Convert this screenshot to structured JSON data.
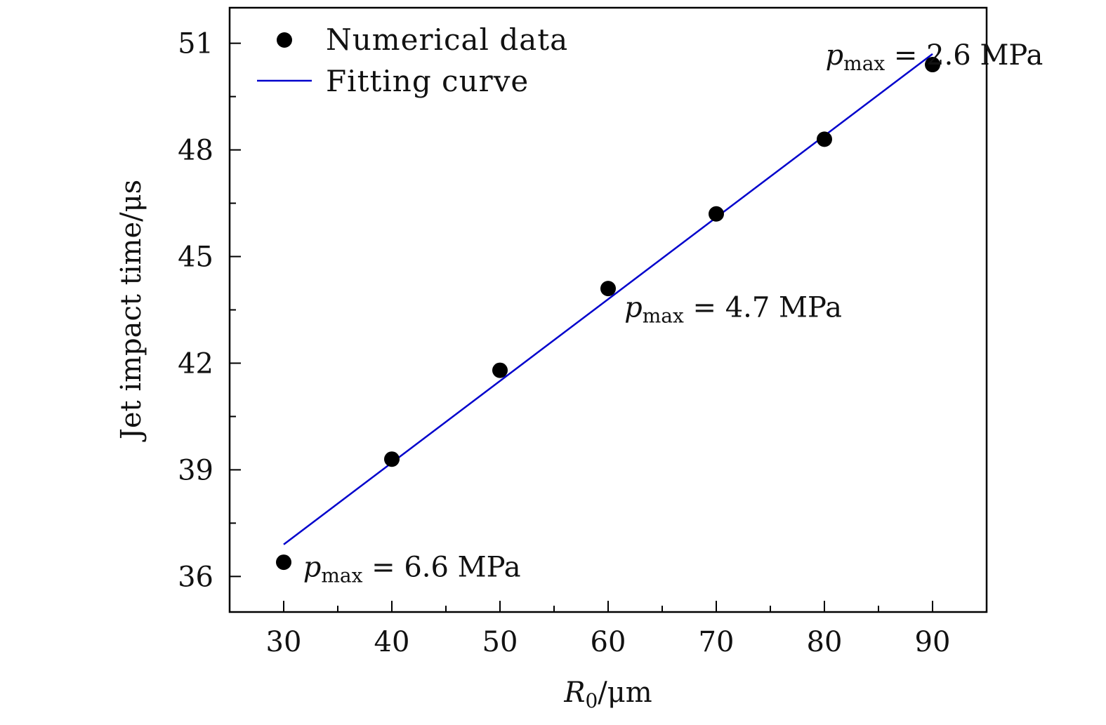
{
  "chart_data": {
    "type": "scatter",
    "title": "",
    "xlabel": {
      "symbol": "R",
      "subscript": "0",
      "unit": "/μm"
    },
    "ylabel": "Jet impact time/μs",
    "xlim": [
      25,
      95
    ],
    "ylim": [
      35,
      52
    ],
    "x_ticks": [
      30,
      40,
      50,
      60,
      70,
      80,
      90
    ],
    "y_ticks": [
      36,
      39,
      42,
      45,
      48,
      51
    ],
    "x_minor_step": 5,
    "y_minor_step": 1.5,
    "series": [
      {
        "name": "Numerical data",
        "kind": "scatter",
        "color": "#000000",
        "x": [
          30,
          40,
          50,
          60,
          70,
          80,
          90
        ],
        "y": [
          36.4,
          39.3,
          41.8,
          44.1,
          46.2,
          48.3,
          50.4
        ]
      },
      {
        "name": "Fitting curve",
        "kind": "line",
        "color": "#0000cc",
        "x": [
          30,
          90
        ],
        "y": [
          36.9,
          50.7
        ]
      }
    ],
    "legend": {
      "position": "top-left",
      "entries": [
        "Numerical data",
        "Fitting curve"
      ]
    },
    "annotations": [
      {
        "symbol": "p",
        "subscript": "max",
        "text": " = 2.6 MPa",
        "x": 80.1,
        "y": 50.4
      },
      {
        "symbol": "p",
        "subscript": "max",
        "text": " = 4.7 MPa",
        "x": 61.5,
        "y": 43.3
      },
      {
        "symbol": "p",
        "subscript": "max",
        "text": " = 6.6 MPa",
        "x": 31.8,
        "y": 36.0
      }
    ]
  }
}
